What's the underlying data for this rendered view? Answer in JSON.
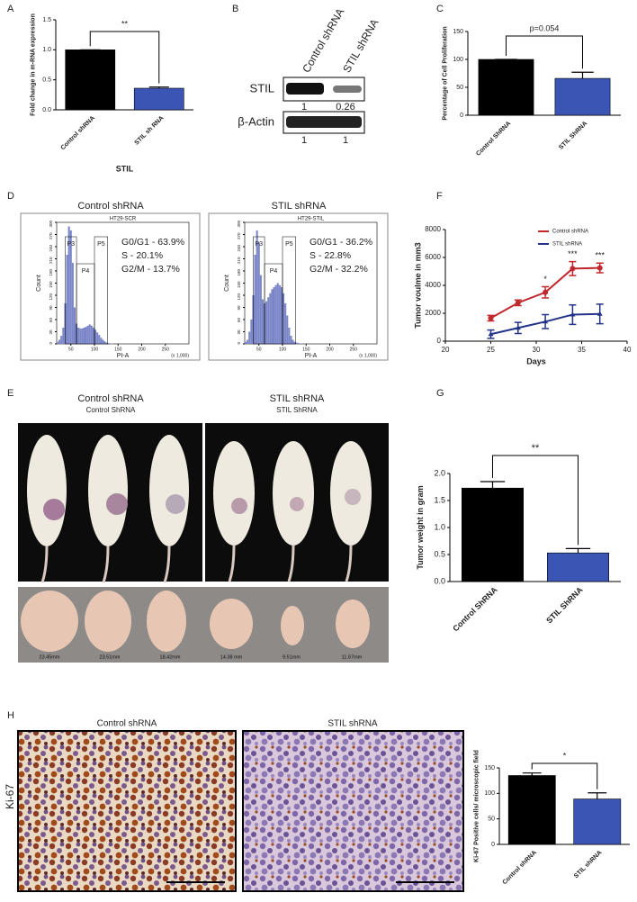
{
  "panel_labels": [
    "A",
    "B",
    "C",
    "D",
    "E",
    "F",
    "G",
    "H"
  ],
  "chart_data": [
    {
      "type": "bar",
      "ylabel": "Fold change in m-RNA expression",
      "xlabel": "STIL",
      "categories": [
        "Control shRNA",
        "STIL sh RNA"
      ],
      "values": [
        1.0,
        0.36
      ],
      "errors": [
        0,
        0.02
      ],
      "colors": [
        "#000000",
        "#3a55b4"
      ],
      "ylim": [
        0,
        1.5
      ],
      "yticks": [
        {
          "value": 0,
          "label": "0.0"
        },
        {
          "value": 0.5,
          "label": "0.5"
        },
        {
          "value": 1,
          "label": "1.0"
        },
        {
          "value": 1.5,
          "label": "1.5"
        }
      ],
      "annotation": "**"
    },
    {
      "type": "bar",
      "ylabel": "Percentage of Cell Proliferation",
      "categories": [
        "Control ShRNA",
        "STIL ShRNA"
      ],
      "values": [
        100,
        66
      ],
      "errors": [
        0,
        11
      ],
      "colors": [
        "#000000",
        "#3a55b4"
      ],
      "ylim": [
        0,
        150
      ],
      "yticks": [
        0,
        50,
        100,
        150
      ],
      "annotation": "p=0.054"
    },
    {
      "type": "line",
      "ylabel": "Tumor voulme in mm3",
      "xlabel": "Days",
      "x": [
        25,
        28,
        31,
        34,
        37
      ],
      "series": [
        {
          "name": "Control shRNA",
          "color": "#c0282d",
          "values": [
            1650,
            2750,
            3500,
            5200,
            5250
          ],
          "errors": [
            200,
            200,
            400,
            500,
            350
          ]
        },
        {
          "name": "STIL shRNA",
          "color": "#23338a",
          "values": [
            500,
            950,
            1400,
            1900,
            1950
          ],
          "errors": [
            300,
            400,
            500,
            700,
            700
          ]
        }
      ],
      "xlim": [
        20,
        40
      ],
      "xticks": [
        20,
        25,
        30,
        35,
        40
      ],
      "ylim": [
        0,
        8000
      ],
      "yticks": [
        0,
        2000,
        4000,
        6000,
        8000
      ],
      "annotations": [
        {
          "x": 31,
          "text": "*"
        },
        {
          "x": 34,
          "text": "***"
        },
        {
          "x": 37,
          "text": "***"
        }
      ]
    },
    {
      "type": "bar",
      "ylabel": "Tumor weight in gram",
      "categories": [
        "Control ShRNA",
        "STIL ShRNA"
      ],
      "values": [
        1.73,
        0.53
      ],
      "errors": [
        0.12,
        0.08
      ],
      "colors": [
        "#000000",
        "#3a55b4"
      ],
      "ylim": [
        0,
        2.0
      ],
      "yticks": [
        {
          "value": 0,
          "label": "0.0"
        },
        {
          "value": 0.5,
          "label": "0.5"
        },
        {
          "value": 1,
          "label": "1.0"
        },
        {
          "value": 1.5,
          "label": "1.5"
        },
        {
          "value": 2,
          "label": "2.0"
        }
      ],
      "annotation": "**"
    },
    {
      "type": "bar",
      "ylabel": "Ki-67 Positive cells/ microscopic field",
      "categories": [
        "Control shRNA",
        "STIL shRNA"
      ],
      "values": [
        135,
        89
      ],
      "errors": [
        5,
        12
      ],
      "colors": [
        "#000000",
        "#3a55b4"
      ],
      "ylim": [
        0,
        150
      ],
      "yticks": [
        0,
        50,
        100,
        150
      ],
      "annotation": "*"
    }
  ],
  "blot": {
    "columns": [
      "Control shRNA",
      "STIL shRNA"
    ],
    "rows": [
      {
        "label": "STIL",
        "values": [
          1,
          0.26
        ]
      },
      {
        "label": "β-Actin",
        "values": [
          1,
          1
        ]
      }
    ]
  },
  "flow": {
    "panels": [
      {
        "title": "Control shRNA",
        "sample": "HT29-SCR",
        "stats": [
          "G0/G1 - 63.9%",
          "S - 20.1%",
          "G2/M - 13.7%"
        ],
        "gates": [
          {
            "label": "P3",
            "range": [
              38,
              62
            ]
          },
          {
            "label": "P4",
            "range": [
              62,
              100
            ]
          },
          {
            "label": "P5",
            "range": [
              100,
              128
            ]
          }
        ],
        "bins": [
          20,
          24,
          28,
          32,
          36,
          40,
          44,
          48,
          52,
          56,
          60,
          64,
          68,
          72,
          76,
          80,
          84,
          88,
          92,
          96,
          100,
          104,
          108,
          112,
          116,
          120,
          124,
          128,
          132,
          136,
          140
        ],
        "counts": [
          5,
          10,
          20,
          40,
          100,
          220,
          290,
          280,
          200,
          90,
          50,
          40,
          38,
          38,
          40,
          42,
          45,
          48,
          45,
          40,
          35,
          28,
          22,
          15,
          10,
          6,
          3,
          2,
          1,
          1
        ]
      },
      {
        "title": "STIL shRNA",
        "sample": "HT29-STIL",
        "stats": [
          "G0/G1 - 36.2%",
          "S - 22.8%",
          "G2/M - 32.2%"
        ],
        "gates": [
          {
            "label": "P3",
            "range": [
              38,
              62
            ]
          },
          {
            "label": "P4",
            "range": [
              62,
              100
            ]
          },
          {
            "label": "P5",
            "range": [
              100,
              128
            ]
          }
        ],
        "bins": [
          20,
          24,
          28,
          32,
          36,
          40,
          44,
          48,
          52,
          56,
          60,
          64,
          68,
          72,
          76,
          80,
          84,
          88,
          92,
          96,
          100,
          104,
          108,
          112,
          116,
          120,
          124,
          128,
          132,
          136,
          140
        ],
        "counts": [
          5,
          10,
          30,
          60,
          120,
          220,
          280,
          250,
          170,
          110,
          100,
          105,
          115,
          125,
          135,
          140,
          145,
          150,
          145,
          140,
          125,
          100,
          70,
          40,
          20,
          10,
          5,
          3,
          2,
          1
        ]
      }
    ],
    "xlim": [
      20,
      300
    ],
    "xticks": [
      50,
      100,
      150,
      200,
      250
    ],
    "ylim": [
      0,
      300
    ],
    "yticks": [
      0,
      30,
      60,
      90,
      120,
      150,
      180,
      210,
      240,
      270,
      300
    ],
    "xlabel": "PI-A",
    "ylabel": "Count",
    "xunit": "(x 1,000)"
  },
  "mice": {
    "groups": [
      {
        "title": "Control shRNA",
        "subtitle": "Control ShRNA",
        "tumors": [
          "23.45mm",
          "23.51mm",
          "18.42mm"
        ]
      },
      {
        "title": "STIL shRNA",
        "subtitle": "STIL ShRNA",
        "tumors": [
          "14.38 mm",
          "9.51mm",
          "11.67mm"
        ]
      }
    ]
  },
  "histology": {
    "row_label": "Ki-67",
    "panels": [
      "Control shRNA",
      "STIL shRNA"
    ]
  }
}
